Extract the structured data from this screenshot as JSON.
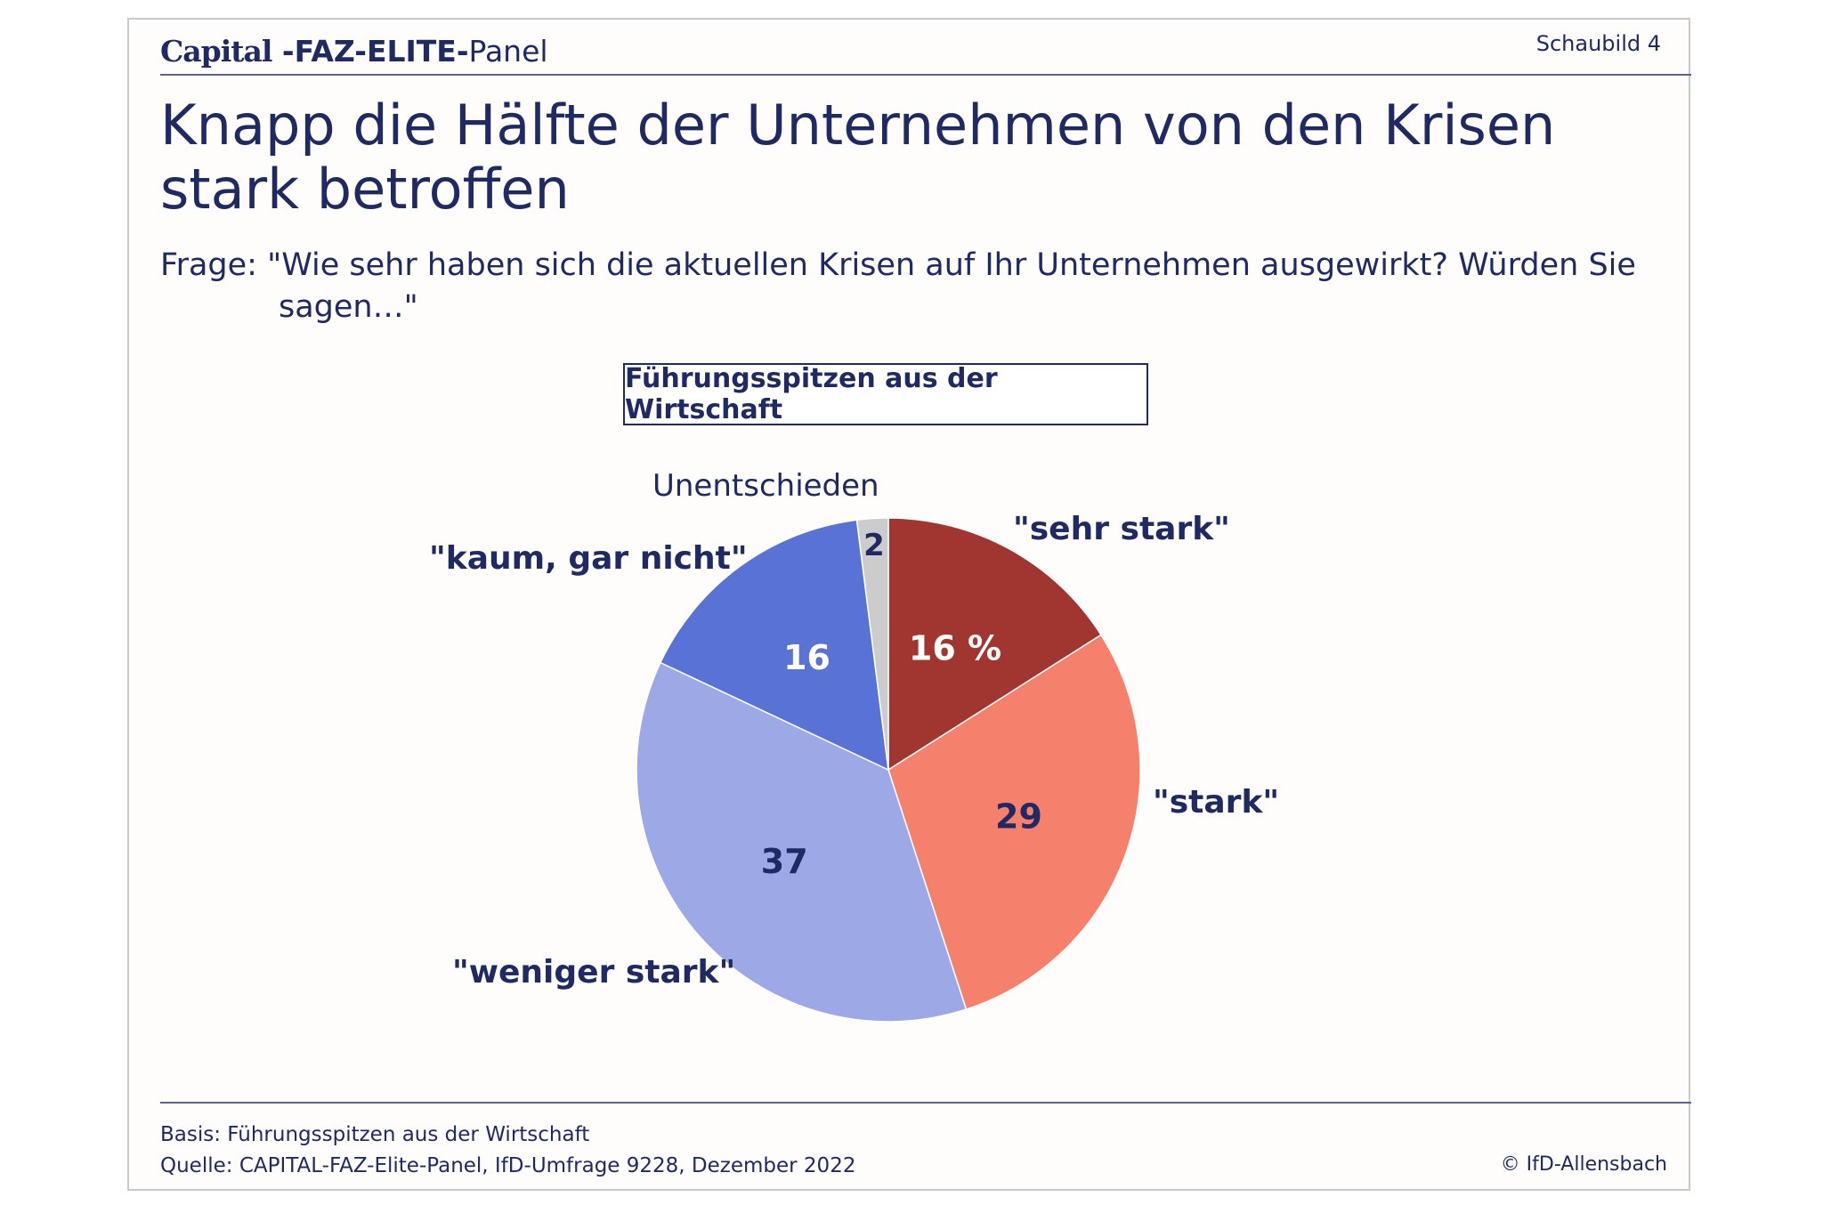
{
  "header": {
    "brand_capital": "Capital",
    "brand_faz": " -FAZ-ELITE-",
    "brand_panel": "Panel",
    "figure_number": "Schaubild 4"
  },
  "title": "Knapp die Hälfte der Unternehmen von den Krisen stark betroffen",
  "question": "Frage: \"Wie sehr haben sich die aktuellen Krisen auf Ihr Unternehmen ausgewirkt? Würden Sie sagen…\"",
  "group_label": "Führungsspitzen aus der Wirtschaft",
  "chart_data": {
    "type": "pie",
    "title": "",
    "unit": "%",
    "start_angle_deg": 0,
    "direction": "clockwise",
    "slices": [
      {
        "label": "\"sehr stark\"",
        "value": 16,
        "value_label": "16 %",
        "color": "#a0362f",
        "value_color": "#ffffff"
      },
      {
        "label": "\"stark\"",
        "value": 29,
        "value_label": "29",
        "color": "#f5806c",
        "value_color": "#1f2a63"
      },
      {
        "label": "\"weniger stark\"",
        "value": 37,
        "value_label": "37",
        "color": "#9da9e6",
        "value_color": "#1f2a63"
      },
      {
        "label": "\"kaum, gar nicht\"",
        "value": 16,
        "value_label": "16",
        "color": "#5872d6",
        "value_color": "#ffffff"
      },
      {
        "label": "Unentschieden",
        "value": 2,
        "value_label": "2",
        "color": "#cccccc",
        "value_color": "#1f2a63"
      }
    ]
  },
  "footer": {
    "basis": "Basis: Führungsspitzen aus der Wirtschaft",
    "source": "Quelle: CAPITAL-FAZ-Elite-Panel, IfD-Umfrage 9228, Dezember 2022",
    "copyright": "© IfD-Allensbach"
  }
}
